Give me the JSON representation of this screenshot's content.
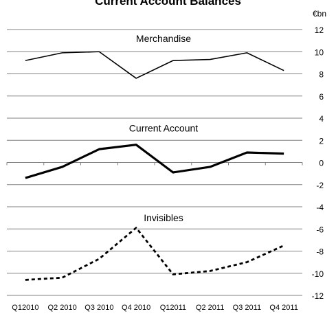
{
  "chart_data": {
    "type": "line",
    "title": "Current Account Balances",
    "unit_label": "€bn",
    "categories": [
      "Q12010",
      "Q2 2010",
      "Q3 2010",
      "Q4 2010",
      "Q12011",
      "Q2 2011",
      "Q3 2011",
      "Q4 2011"
    ],
    "ylim": [
      -12,
      12
    ],
    "yticks": [
      12,
      10,
      8,
      6,
      4,
      2,
      0,
      -2,
      -4,
      -6,
      -8,
      -10,
      -12
    ],
    "grid": true,
    "y_axis_position": "right",
    "series": [
      {
        "name": "Merchandise",
        "values": [
          9.2,
          9.9,
          10.0,
          7.6,
          9.2,
          9.3,
          9.9,
          8.3
        ],
        "color": "#000000",
        "style": "solid-thin"
      },
      {
        "name": "Current Account",
        "values": [
          -1.4,
          -0.4,
          1.2,
          1.6,
          -0.9,
          -0.4,
          0.9,
          0.8
        ],
        "color": "#000000",
        "style": "solid-thick"
      },
      {
        "name": "Invisibles",
        "values": [
          -10.6,
          -10.4,
          -8.7,
          -5.9,
          -10.1,
          -9.8,
          -9.0,
          -7.5
        ],
        "color": "#000000",
        "style": "dashed"
      }
    ]
  }
}
